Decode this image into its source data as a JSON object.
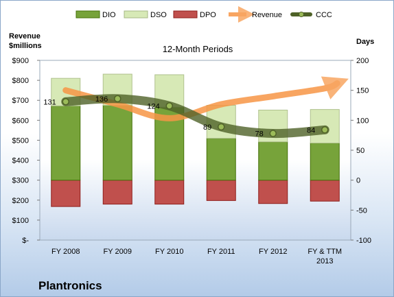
{
  "chart_data": {
    "type": "bar",
    "title": "12-Month Periods",
    "company": "Plantronics",
    "left_axis_title": [
      "Revenue",
      "$millions"
    ],
    "right_axis_title": "Days",
    "left_ticks": [
      "$-",
      "$100",
      "$200",
      "$300",
      "$400",
      "$500",
      "$600",
      "$700",
      "$800",
      "$900"
    ],
    "right_ticks": [
      "-100",
      "-50",
      "0",
      "50",
      "100",
      "150",
      "200"
    ],
    "ylim_left": [
      0,
      900
    ],
    "ylim_right": [
      -100,
      200
    ],
    "categories": [
      [
        "FY 2008"
      ],
      [
        "FY 2009"
      ],
      [
        "FY 2010"
      ],
      [
        "FY 2011"
      ],
      [
        "FY 2012"
      ],
      [
        "FY & TTM",
        "2013"
      ]
    ],
    "legend": [
      "DIO",
      "DSO",
      "DPO",
      "Revenue",
      "CCC"
    ],
    "series": [
      {
        "name": "DIO",
        "axis": "right",
        "color": "#77a33a",
        "values": [
          124,
          125,
          122,
          70,
          64,
          62
        ]
      },
      {
        "name": "DSO",
        "axis": "right",
        "color": "#d7e9b6",
        "values": [
          46,
          52,
          54,
          55,
          53,
          56
        ]
      },
      {
        "name": "DPO",
        "axis": "right",
        "color": "#c0504d",
        "values": [
          -44,
          -40,
          -40,
          -34,
          -39,
          -35
        ]
      },
      {
        "name": "Revenue",
        "axis": "left",
        "color": "#f79646",
        "values": [
          750,
          680,
          610,
          680,
          720,
          760
        ]
      },
      {
        "name": "CCC",
        "axis": "right",
        "color": "#4f6228",
        "values": [
          131,
          136,
          124,
          89,
          78,
          84
        ]
      }
    ],
    "ccc_labels": [
      "131",
      "136",
      "124",
      "89",
      "78",
      "84"
    ],
    "legend_placement": "top",
    "grid": false
  }
}
